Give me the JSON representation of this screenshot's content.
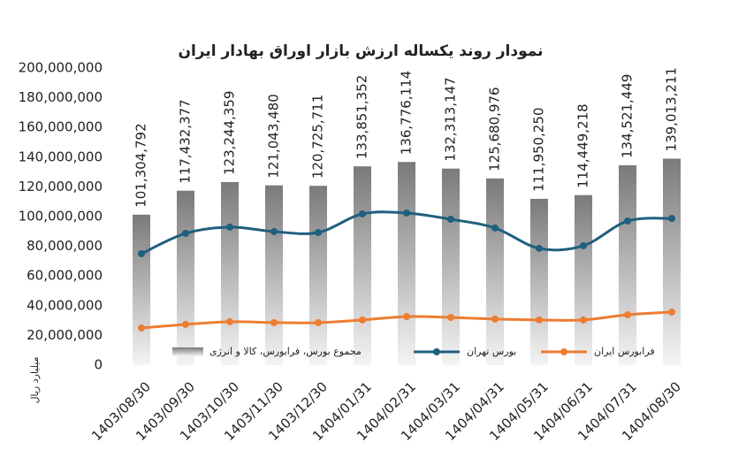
{
  "chart_data": {
    "type": "bar",
    "title": "نمودار روند یکساله ارزش بازار اوراق بهادار ایران",
    "y_label": "میلیارد ریال",
    "categories": [
      "1403/08/30",
      "1403/09/30",
      "1403/10/30",
      "1403/11/30",
      "1403/12/30",
      "1404/01/31",
      "1404/02/31",
      "1404/03/31",
      "1404/04/31",
      "1404/05/31",
      "1404/06/31",
      "1404/07/31",
      "1404/08/30"
    ],
    "series": [
      {
        "name": "مجموع بورس، فرابورس، کالا و انرژی",
        "type": "bar",
        "color": "#8c8c8c",
        "values": [
          101304792,
          117432377,
          123244359,
          121043480,
          120725711,
          133851352,
          136776114,
          132313147,
          125680976,
          111950250,
          114449218,
          134521449,
          139013211
        ],
        "value_labels": [
          "101,304,792",
          "117,432,377",
          "123,244,359",
          "121,043,480",
          "120,725,711",
          "133,851,352",
          "136,776,114",
          "132,313,147",
          "125,680,976",
          "111,950,250",
          "114,449,218",
          "134,521,449",
          "139,013,211"
        ]
      },
      {
        "name": "بورس تهران",
        "type": "line",
        "color": "#1f5f7f",
        "values": [
          75000000,
          88700000,
          92900000,
          89900000,
          89300000,
          101800000,
          102400000,
          98200000,
          92300000,
          78600000,
          80400000,
          97000000,
          98800000
        ]
      },
      {
        "name": "فرابورس ایران",
        "type": "line",
        "color": "#ed7d31",
        "values": [
          25000000,
          27400000,
          29200000,
          28600000,
          28600000,
          30400000,
          32700000,
          32100000,
          31000000,
          30400000,
          30400000,
          33900000,
          35700000
        ]
      }
    ],
    "ylim": [
      0,
      200000000
    ],
    "yticks": [
      0,
      {
        "value": 20000000,
        "label": "20,000,000"
      },
      {
        "value": 40000000,
        "label": "40,000,000"
      },
      {
        "value": 60000000,
        "label": "60,000,000"
      },
      {
        "value": 80000000,
        "label": "80,000,000"
      },
      {
        "value": 100000000,
        "label": "100,000,000"
      },
      {
        "value": 120000000,
        "label": "120,000,000"
      },
      {
        "value": 140000000,
        "label": "140,000,000"
      },
      {
        "value": 160000000,
        "label": "160,000,000"
      },
      {
        "value": 180000000,
        "label": "180,000,000"
      },
      {
        "value": 200000000,
        "label": "200,000,000"
      }
    ],
    "legend": "bottom"
  }
}
